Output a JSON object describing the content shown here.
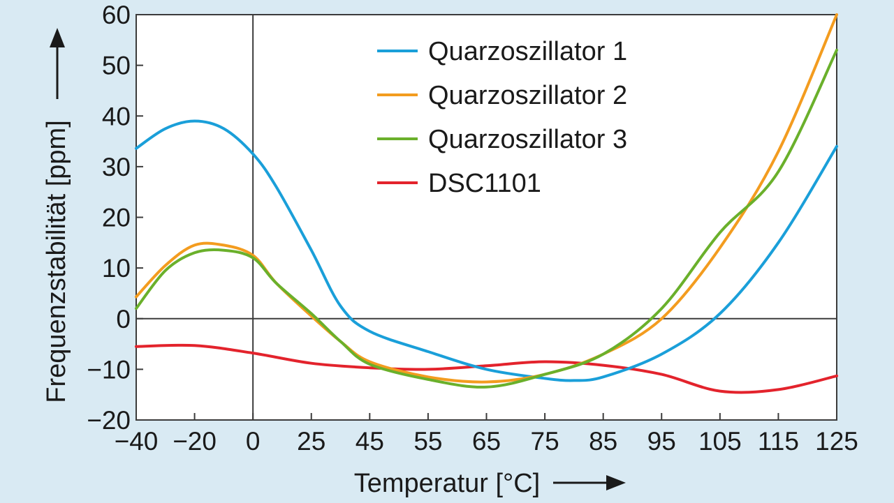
{
  "chart_data": {
    "type": "line",
    "xlabel": "Temperatur [°C]",
    "ylabel": "Frequenzstabilität [ppm]",
    "x_ticks": [
      "−40",
      "−20",
      "0",
      "25",
      "45",
      "55",
      "65",
      "75",
      "85",
      "95",
      "105",
      "115",
      "125"
    ],
    "y_ticks": [
      "60",
      "50",
      "40",
      "30",
      "20",
      "10",
      "0",
      "−10",
      "−20"
    ],
    "ylim": [
      -20,
      60
    ],
    "legend_position": "top-center",
    "grid": false,
    "reference_lines": {
      "x": "0",
      "y": "0"
    },
    "series": [
      {
        "name": "Quarzoszillator 1",
        "color": "#1a9fd9",
        "x": [
          "−40",
          "−30",
          "−20",
          "−10",
          "0",
          "10",
          "25",
          "35",
          "45",
          "55",
          "65",
          "75",
          "80",
          "85",
          "95",
          "105",
          "115",
          "125"
        ],
        "values": [
          33.6,
          37.5,
          39.0,
          37.5,
          32.5,
          26,
          13.5,
          2.5,
          -2.5,
          -6.5,
          -10,
          -11.8,
          -12.2,
          -11.5,
          -7,
          1,
          15,
          34
        ]
      },
      {
        "name": "Quarzoszillator 2",
        "color": "#f39c1f",
        "x": [
          "−40",
          "−30",
          "−20",
          "−10",
          "0",
          "10",
          "25",
          "35",
          "45",
          "55",
          "65",
          "75",
          "85",
          "95",
          "105",
          "115",
          "125"
        ],
        "values": [
          4.3,
          10.5,
          14.5,
          14.5,
          12.5,
          7,
          0.5,
          -4.5,
          -8.5,
          -11.5,
          -12.5,
          -11,
          -7,
          0,
          14,
          33,
          60
        ]
      },
      {
        "name": "Quarzoszillator 3",
        "color": "#6ab02b",
        "x": [
          "−40",
          "−30",
          "−20",
          "−10",
          "0",
          "10",
          "25",
          "35",
          "45",
          "55",
          "65",
          "75",
          "85",
          "95",
          "105",
          "115",
          "125"
        ],
        "values": [
          2.0,
          9.5,
          13.0,
          13.5,
          12,
          7,
          1,
          -4.5,
          -9,
          -12,
          -13.5,
          -11,
          -7,
          2,
          17,
          29,
          53
        ]
      },
      {
        "name": "DSC1101",
        "color": "#e3232c",
        "x": [
          "−40",
          "−20",
          "0",
          "25",
          "45",
          "55",
          "65",
          "75",
          "85",
          "95",
          "105",
          "115",
          "125"
        ],
        "values": [
          -5.5,
          -5.3,
          -6.8,
          -8.8,
          -9.7,
          -10.0,
          -9.3,
          -8.5,
          -9.2,
          -11,
          -14.3,
          -14,
          -11.3
        ]
      }
    ]
  }
}
